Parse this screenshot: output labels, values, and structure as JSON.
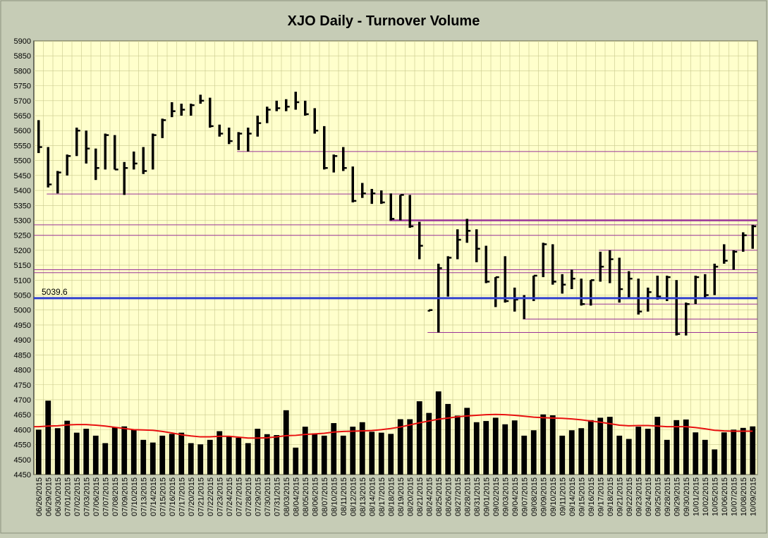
{
  "chart_data": {
    "type": "ohlc",
    "title": "XJO Daily - Turnover Volume",
    "ylim": [
      4450,
      5900
    ],
    "y_ticks": [
      4450,
      4500,
      4550,
      4600,
      4650,
      4700,
      4750,
      4800,
      4850,
      4900,
      4950,
      5000,
      5050,
      5100,
      5150,
      5200,
      5250,
      5300,
      5350,
      5400,
      5450,
      5500,
      5550,
      5600,
      5650,
      5700,
      5750,
      5800,
      5850,
      5900
    ],
    "grid": true,
    "dates": [
      "06/26/2015",
      "06/29/2015",
      "06/30/2015",
      "07/01/2015",
      "07/02/2015",
      "07/03/2015",
      "07/06/2015",
      "07/07/2015",
      "07/08/2015",
      "07/09/2015",
      "07/10/2015",
      "07/13/2015",
      "07/14/2015",
      "07/15/2015",
      "07/16/2015",
      "07/17/2015",
      "07/20/2015",
      "07/21/2015",
      "07/22/2015",
      "07/23/2015",
      "07/24/2015",
      "07/27/2015",
      "07/28/2015",
      "07/29/2015",
      "07/30/2015",
      "07/31/2015",
      "08/03/2015",
      "08/04/2015",
      "08/05/2015",
      "08/06/2015",
      "08/07/2015",
      "08/10/2015",
      "08/11/2015",
      "08/12/2015",
      "08/13/2015",
      "08/14/2015",
      "08/17/2015",
      "08/18/2015",
      "08/19/2015",
      "08/20/2015",
      "08/21/2015",
      "08/24/2015",
      "08/25/2015",
      "08/26/2015",
      "08/27/2015",
      "08/28/2015",
      "08/31/2015",
      "09/01/2015",
      "09/02/2015",
      "09/03/2015",
      "09/04/2015",
      "09/07/2015",
      "09/08/2015",
      "09/09/2015",
      "09/10/2015",
      "09/11/2015",
      "09/14/2015",
      "09/15/2015",
      "09/16/2015",
      "09/17/2015",
      "09/18/2015",
      "09/21/2015",
      "09/22/2015",
      "09/23/2015",
      "09/24/2015",
      "09/25/2015",
      "09/28/2015",
      "09/29/2015",
      "09/30/2015",
      "10/01/2015",
      "10/02/2015",
      "10/05/2015",
      "10/06/2015",
      "10/07/2015",
      "10/08/2015",
      "10/09/2015"
    ],
    "x_tick_labels": [
      "06/26/2015",
      "06/29/2015",
      "06/30/2015",
      "07/01/2015",
      "07/02/2015",
      "07/03/2015",
      "07/06/2015",
      "07/07/2015",
      "07/08/2015",
      "07/09/2015",
      "07/10/2015",
      "07/13/2015",
      "07/14/2015",
      "07/15/2015",
      "07/16/2015",
      "07/17/2015",
      "07/20/2015",
      "07/21/2015",
      "07/22/2015",
      "07/23/2015",
      "07/24/2015",
      "07/27/2015",
      "07/28/2015",
      "07/29/2015",
      "07/30/2015",
      "07/31/2015",
      "08/03/2015",
      "08/04/2015",
      "08/05/2015",
      "08/06/2015",
      "08/07/2015",
      "08/10/2015",
      "08/11/2015",
      "08/12/2015",
      "08/13/2015",
      "08/14/2015",
      "08/17/2015",
      "08/18/2015",
      "08/19/2015",
      "08/20/2015",
      "08/21/2015",
      "08/24/2015",
      "08/25/2015",
      "08/26/2015",
      "08/27/2015",
      "08/28/2015",
      "08/31/2015",
      "09/01/2015",
      "09/02/2015",
      "09/03/2015",
      "09/04/2015",
      "09/07/2015",
      "09/08/2015",
      "09/09/2015",
      "09/10/2015",
      "09/11/2015",
      "09/14/2015",
      "09/15/2015",
      "09/16/2015",
      "09/17/2015",
      "09/18/2015",
      "09/21/2015",
      "09/22/2015",
      "09/23/2015",
      "09/24/2015",
      "09/25/2015",
      "09/28/2015",
      "09/29/2015",
      "09/30/2015",
      "10/01/2015",
      "10/02/2015",
      "10/05/2015",
      "10/06/2015",
      "10/07/2015",
      "10/08/2015",
      "10/09/2015"
    ],
    "price": {
      "high": [
        5635,
        5545,
        5465,
        5520,
        5610,
        5600,
        5540,
        5590,
        5585,
        5495,
        5530,
        5545,
        5590,
        5640,
        5695,
        5690,
        5690,
        5720,
        5710,
        5620,
        5610,
        5595,
        5610,
        5650,
        5680,
        5700,
        5705,
        5730,
        5700,
        5675,
        5615,
        5520,
        5545,
        5480,
        5425,
        5405,
        5400,
        5390,
        5385,
        5385,
        5295,
        5000,
        5155,
        5180,
        5270,
        5305,
        5270,
        5215,
        5110,
        5180,
        5075,
        5050,
        5115,
        5225,
        5220,
        5120,
        5135,
        5105,
        5100,
        5195,
        5200,
        5175,
        5130,
        5105,
        5075,
        5115,
        5115,
        5100,
        5025,
        5115,
        5120,
        5155,
        5220,
        5200,
        5260,
        5285
      ],
      "low": [
        5525,
        5410,
        5390,
        5450,
        5515,
        5490,
        5435,
        5470,
        5470,
        5385,
        5470,
        5455,
        5470,
        5575,
        5645,
        5650,
        5650,
        5690,
        5610,
        5580,
        5555,
        5535,
        5530,
        5580,
        5625,
        5665,
        5665,
        5670,
        5650,
        5590,
        5470,
        5460,
        5465,
        5360,
        5375,
        5355,
        5355,
        5300,
        5300,
        5275,
        5170,
        4995,
        4925,
        5045,
        5170,
        5225,
        5160,
        5090,
        5010,
        5025,
        4995,
        4970,
        5030,
        5110,
        5085,
        5055,
        5070,
        5015,
        5015,
        5095,
        5090,
        5025,
        5040,
        4985,
        4995,
        5035,
        5030,
        4915,
        4915,
        5020,
        5040,
        5050,
        5155,
        5135,
        5195,
        5205
      ],
      "close": [
        5545,
        5420,
        5460,
        5515,
        5600,
        5540,
        5475,
        5585,
        5470,
        5475,
        5490,
        5465,
        5585,
        5635,
        5665,
        5670,
        5685,
        5700,
        5615,
        5590,
        5565,
        5590,
        5590,
        5625,
        5670,
        5675,
        5680,
        5695,
        5655,
        5600,
        5475,
        5515,
        5475,
        5365,
        5390,
        5390,
        5360,
        5305,
        5385,
        5280,
        5215,
        5000,
        5140,
        5175,
        5235,
        5265,
        5205,
        5095,
        5110,
        5030,
        5035,
        5040,
        5115,
        5220,
        5095,
        5085,
        5105,
        5020,
        5100,
        5145,
        5170,
        5070,
        5105,
        4995,
        5060,
        5045,
        5110,
        4920,
        5020,
        5110,
        5050,
        5145,
        5165,
        5195,
        5250,
        5280
      ]
    },
    "volume": [
      4600,
      4697,
      4605,
      4630,
      4590,
      4603,
      4580,
      4555,
      4609,
      4611,
      4600,
      4566,
      4557,
      4580,
      4586,
      4590,
      4555,
      4551,
      4566,
      4595,
      4578,
      4573,
      4555,
      4603,
      4585,
      4582,
      4665,
      4540,
      4610,
      4588,
      4580,
      4622,
      4580,
      4610,
      4625,
      4593,
      4590,
      4586,
      4635,
      4635,
      4695,
      4656,
      4728,
      4686,
      4647,
      4673,
      4625,
      4629,
      4640,
      4618,
      4631,
      4580,
      4598,
      4651,
      4648,
      4580,
      4598,
      4605,
      4632,
      4640,
      4643,
      4580,
      4569,
      4610,
      4603,
      4643,
      4566,
      4632,
      4634,
      4591,
      4566,
      4534,
      4591,
      4600,
      4606,
      4611
    ],
    "volume_ma": [
      4610,
      4612,
      4613,
      4616,
      4617,
      4617,
      4615,
      4612,
      4608,
      4604,
      4600,
      4599,
      4598,
      4594,
      4589,
      4583,
      4579,
      4576,
      4576,
      4578,
      4578,
      4575,
      4572,
      4572,
      4573,
      4576,
      4580,
      4581,
      4584,
      4586,
      4588,
      4592,
      4594,
      4595,
      4596,
      4597,
      4600,
      4604,
      4609,
      4616,
      4623,
      4629,
      4635,
      4639,
      4643,
      4646,
      4648,
      4650,
      4651,
      4650,
      4648,
      4645,
      4642,
      4640,
      4639,
      4638,
      4636,
      4633,
      4629,
      4625,
      4620,
      4615,
      4613,
      4614,
      4614,
      4612,
      4610,
      4610,
      4610,
      4607,
      4603,
      4598,
      4596,
      4595,
      4595,
      4595
    ],
    "reference_line": {
      "value": 5039.6,
      "label": "5039.6",
      "color": "#2f3fd0"
    },
    "support_resistance_lines": [
      {
        "value": 5530,
        "from": "07/27/2015",
        "to": "10/09/2015"
      },
      {
        "value": 5388,
        "from": "06/29/2015",
        "to": "10/09/2015"
      },
      {
        "value": 5300,
        "from": "08/18/2015",
        "to": "10/09/2015",
        "bold": true
      },
      {
        "value": 5285,
        "from": "06/26/2015",
        "to": "10/09/2015"
      },
      {
        "value": 5250,
        "from": "06/26/2015",
        "to": "10/09/2015"
      },
      {
        "value": 5200,
        "from": "09/17/2015",
        "to": "10/09/2015"
      },
      {
        "value": 5135,
        "from": "06/26/2015",
        "to": "10/09/2015"
      },
      {
        "value": 5125,
        "from": "06/26/2015",
        "to": "10/09/2015"
      },
      {
        "value": 5020,
        "from": "09/15/2015",
        "to": "10/09/2015"
      },
      {
        "value": 4970,
        "from": "09/07/2015",
        "to": "10/09/2015"
      },
      {
        "value": 4925,
        "from": "08/24/2015",
        "to": "10/09/2015"
      }
    ],
    "colors": {
      "background": "#ffffcc",
      "frame": "#c6ccb6",
      "bars": "#000000",
      "volume_ma": "#e81010",
      "sr_lines": "#993399",
      "grid": "#c8c88c"
    }
  }
}
